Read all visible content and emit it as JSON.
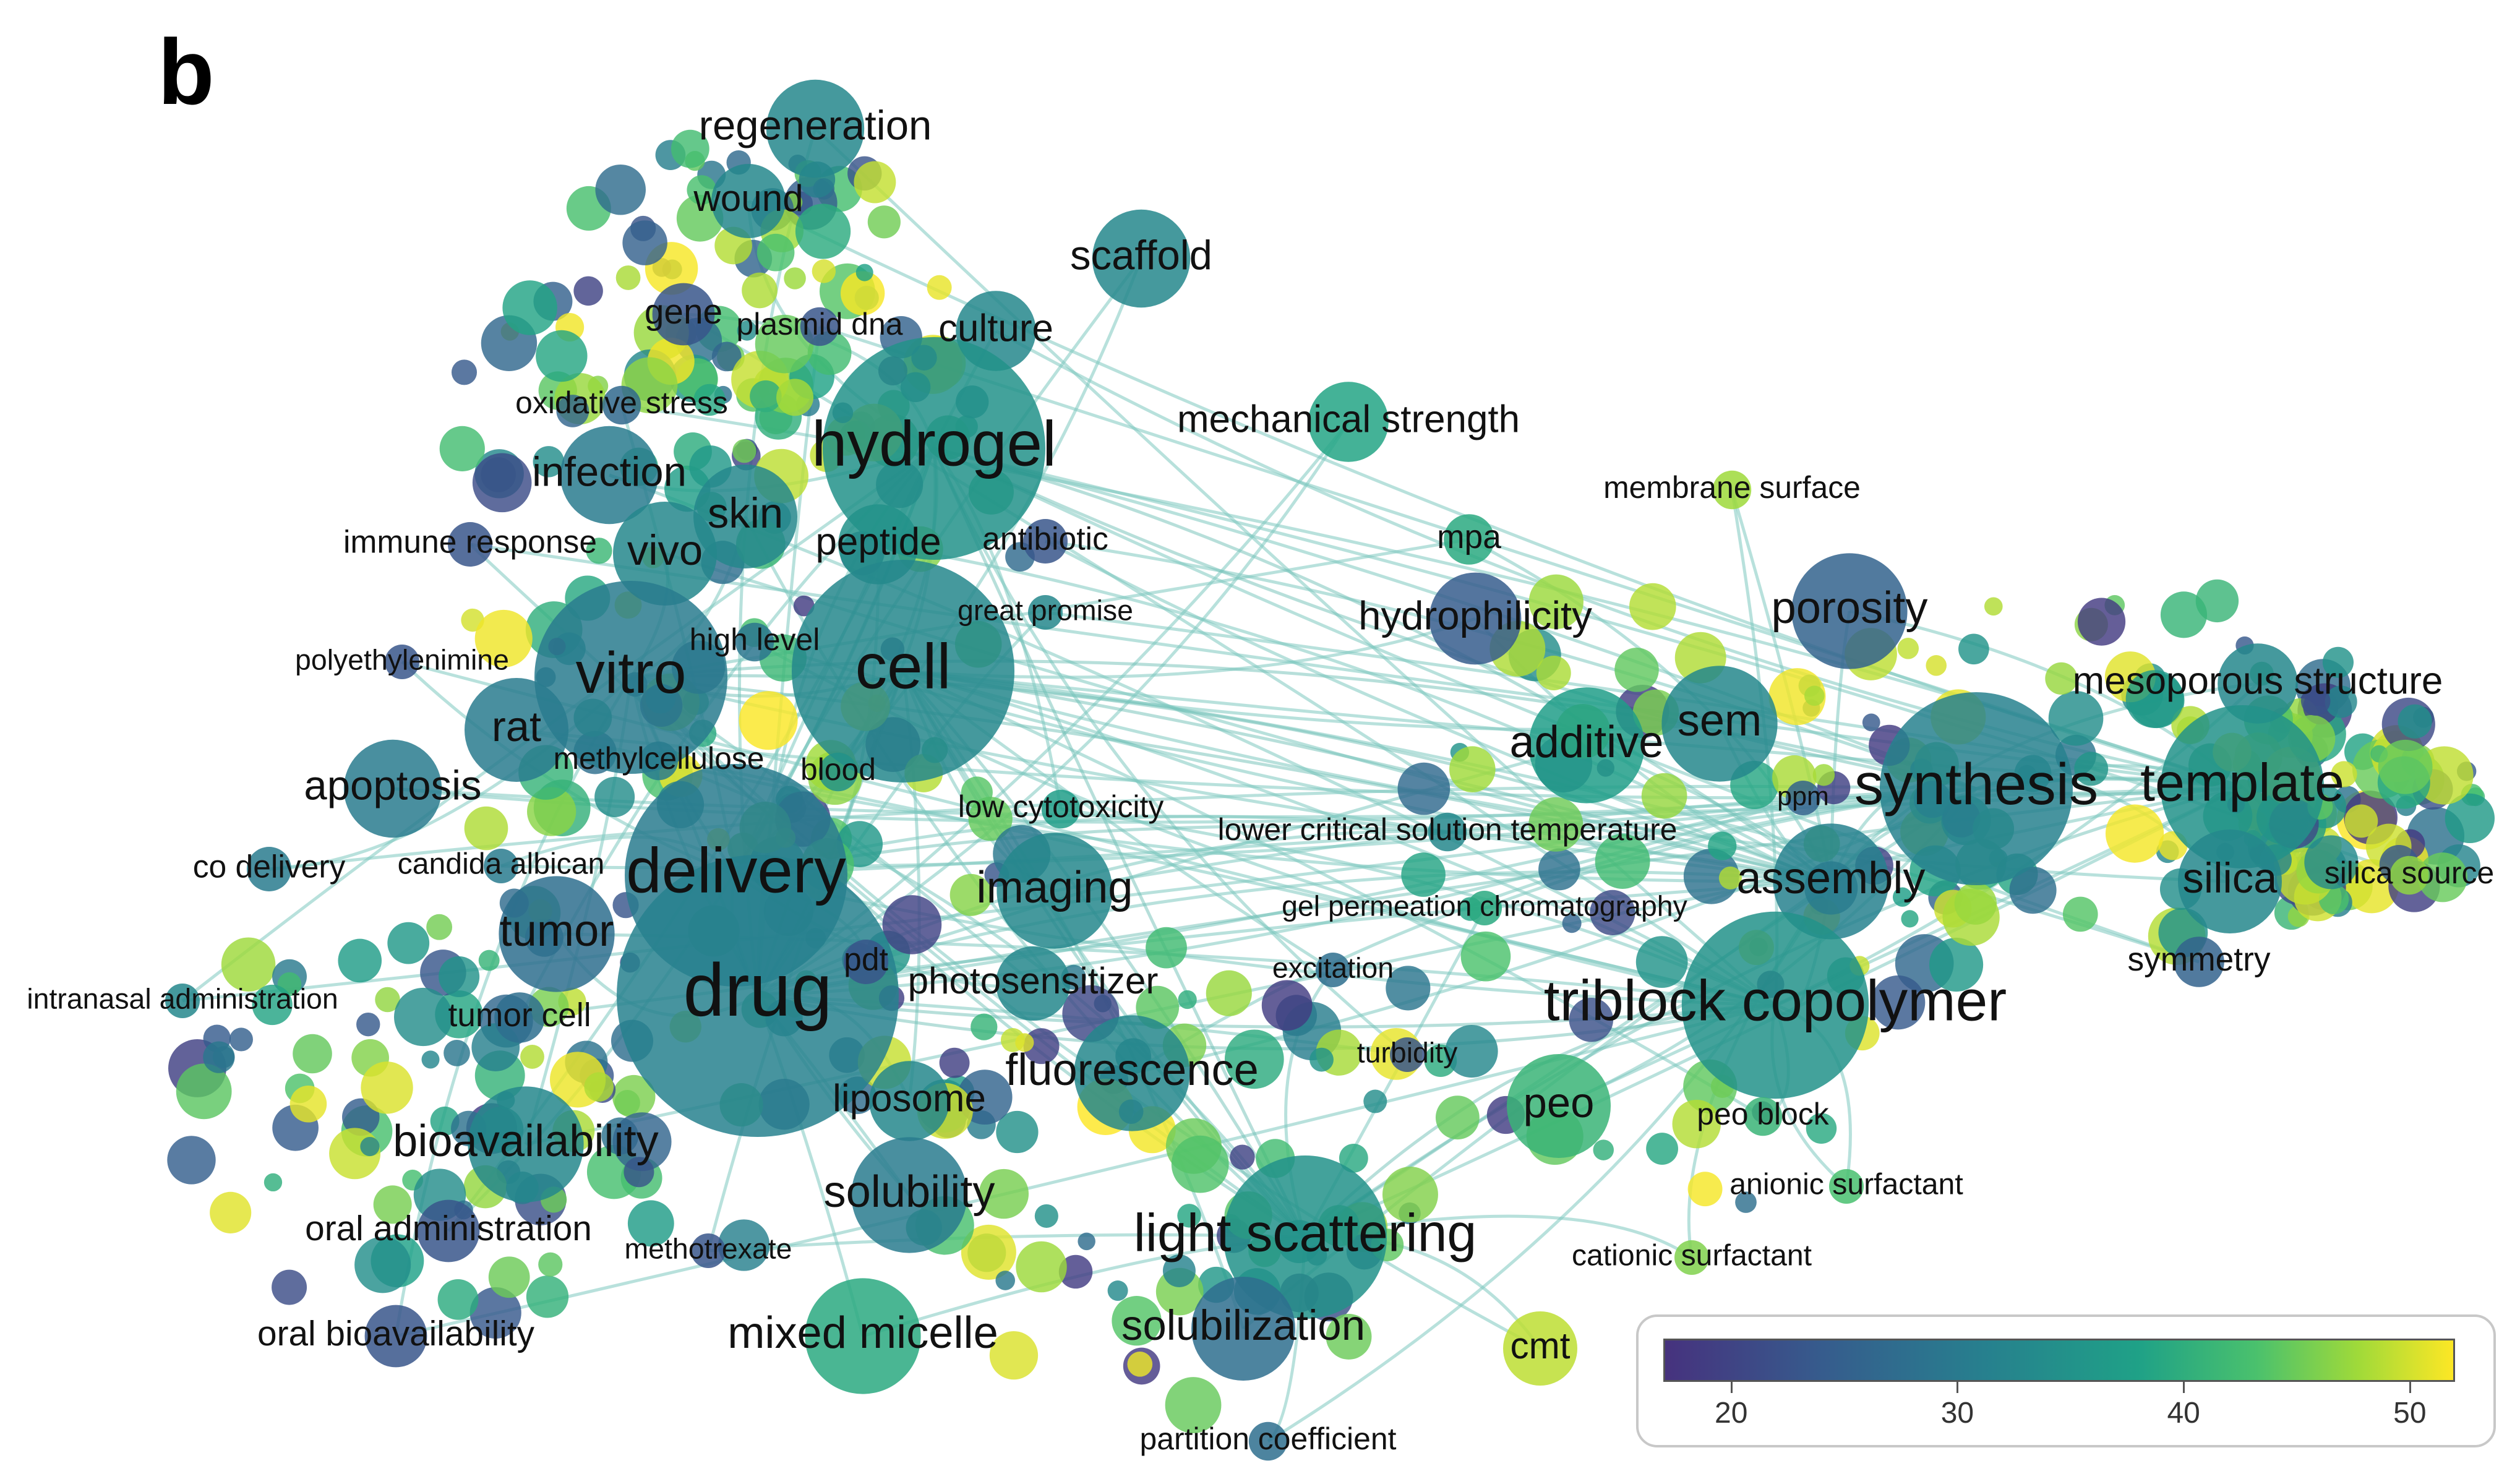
{
  "panel_label": "b",
  "colormap": [
    "#46327e",
    "#365c8d",
    "#277f8e",
    "#1fa187",
    "#4ac16d",
    "#a0da39",
    "#fde725"
  ],
  "terms": [
    {
      "label": "regeneration",
      "size": 78,
      "value": 30
    },
    {
      "label": "wound",
      "size": 70,
      "value": 30
    },
    {
      "label": "scaffold",
      "size": 78,
      "value": 30
    },
    {
      "label": "gene",
      "size": 66,
      "value": 22
    },
    {
      "label": "plasmid dna",
      "size": 58,
      "value": 22
    },
    {
      "label": "culture",
      "size": 72,
      "value": 30
    },
    {
      "label": "oxidative stress",
      "size": 58,
      "value": 25
    },
    {
      "label": "hydrogel",
      "size": 120,
      "value": 32
    },
    {
      "label": "mechanical strength",
      "size": 72,
      "value": 35
    },
    {
      "label": "infection",
      "size": 78,
      "value": 28
    },
    {
      "label": "skin",
      "size": 80,
      "value": 30
    },
    {
      "label": "immune response",
      "size": 60,
      "value": 22
    },
    {
      "label": "vivo",
      "size": 80,
      "value": 30
    },
    {
      "label": "peptide",
      "size": 72,
      "value": 32
    },
    {
      "label": "antibiotic",
      "size": 60,
      "value": 22
    },
    {
      "label": "membrane surface",
      "size": 58,
      "value": 46
    },
    {
      "label": "mpa",
      "size": 62,
      "value": 36
    },
    {
      "label": "great promise",
      "size": 54,
      "value": 30
    },
    {
      "label": "high level",
      "size": 58,
      "value": 27
    },
    {
      "label": "hydrophilicity",
      "size": 76,
      "value": 23
    },
    {
      "label": "porosity",
      "size": 84,
      "value": 24
    },
    {
      "label": "polyethylenimine",
      "size": 54,
      "value": 22
    },
    {
      "label": "vitro",
      "size": 110,
      "value": 28
    },
    {
      "label": "cell",
      "size": 120,
      "value": 30
    },
    {
      "label": "mesoporous structure",
      "size": 72,
      "value": 30
    },
    {
      "label": "rat",
      "size": 80,
      "value": 28
    },
    {
      "label": "methylcellulose",
      "size": 58,
      "value": 28
    },
    {
      "label": "blood",
      "size": 58,
      "value": 32
    },
    {
      "label": "additive",
      "size": 84,
      "value": 34
    },
    {
      "label": "sem",
      "size": 84,
      "value": 30
    },
    {
      "label": "apoptosis",
      "size": 78,
      "value": 28
    },
    {
      "label": "ppm",
      "size": 50,
      "value": 24
    },
    {
      "label": "synthesis",
      "size": 110,
      "value": 29
    },
    {
      "label": "template",
      "size": 100,
      "value": 32
    },
    {
      "label": "low cytotoxicity",
      "size": 58,
      "value": 34
    },
    {
      "label": "lower critical solution temperature",
      "size": 58,
      "value": 30
    },
    {
      "label": "co delivery",
      "size": 60,
      "value": 28
    },
    {
      "label": "candida albican",
      "size": 56,
      "value": 28
    },
    {
      "label": "delivery",
      "size": 120,
      "value": 28
    },
    {
      "label": "imaging",
      "size": 84,
      "value": 30
    },
    {
      "label": "assembly",
      "size": 84,
      "value": 29
    },
    {
      "label": "silica",
      "size": 80,
      "value": 30
    },
    {
      "label": "silica source",
      "size": 58,
      "value": 45
    },
    {
      "label": "gel permeation chromatography",
      "size": 54,
      "value": 36
    },
    {
      "label": "tumor",
      "size": 84,
      "value": 26
    },
    {
      "label": "drug",
      "size": 140,
      "value": 29
    },
    {
      "label": "pdt",
      "size": 60,
      "value": 22
    },
    {
      "label": "photosensitizer",
      "size": 70,
      "value": 30
    },
    {
      "label": "excitation",
      "size": 54,
      "value": 26
    },
    {
      "label": "triblock copolymer",
      "size": 108,
      "value": 32
    },
    {
      "label": "symmetry",
      "size": 62,
      "value": 24
    },
    {
      "label": "intranasal administration",
      "size": 54,
      "value": 30
    },
    {
      "label": "tumor cell",
      "size": 62,
      "value": 26
    },
    {
      "label": "turbidity",
      "size": 54,
      "value": 22
    },
    {
      "label": "fluorescence",
      "size": 84,
      "value": 30
    },
    {
      "label": "liposome",
      "size": 72,
      "value": 30
    },
    {
      "label": "peo",
      "size": 80,
      "value": 38
    },
    {
      "label": "peo block",
      "size": 58,
      "value": 38
    },
    {
      "label": "bioavailability",
      "size": 84,
      "value": 30
    },
    {
      "label": "anionic surfactant",
      "size": 56,
      "value": 40
    },
    {
      "label": "solubility",
      "size": 84,
      "value": 28
    },
    {
      "label": "light scattering",
      "size": 100,
      "value": 32
    },
    {
      "label": "oral administration",
      "size": 66,
      "value": 22
    },
    {
      "label": "methotrexate",
      "size": 54,
      "value": 22
    },
    {
      "label": "cationic surfactant",
      "size": 56,
      "value": 44
    },
    {
      "label": "oral bioavailability",
      "size": 66,
      "value": 22
    },
    {
      "label": "mixed micelle",
      "size": 84,
      "value": 36
    },
    {
      "label": "solubilization",
      "size": 80,
      "value": 26
    },
    {
      "label": "cmt",
      "size": 70,
      "value": 48
    },
    {
      "label": "partition coefficient",
      "size": 58,
      "value": 26
    }
  ],
  "legend": {
    "min": 17,
    "max": 52,
    "ticks": [
      {
        "value": 20,
        "label": "20"
      },
      {
        "value": 30,
        "label": "30"
      },
      {
        "value": 40,
        "label": "40"
      },
      {
        "value": 50,
        "label": "50"
      }
    ]
  }
}
